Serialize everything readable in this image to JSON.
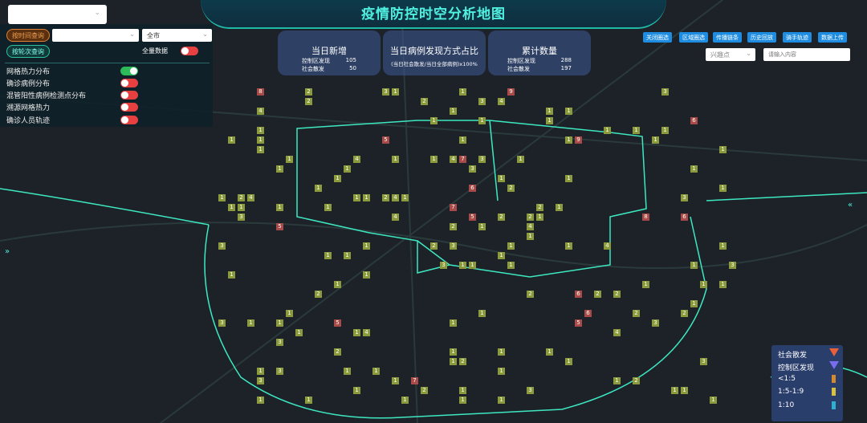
{
  "header": {
    "title": "疫情防控时空分析地图"
  },
  "left_panel": {
    "by_time_label": "按时间查询",
    "city_select": "全市",
    "by_round_label": "按轮次查询",
    "full_data_label": "全量数据",
    "full_data_on": false,
    "layers": [
      {
        "label": "网格热力分布",
        "on": true
      },
      {
        "label": "确诊病例分布",
        "on": false
      },
      {
        "label": "混管阳性病例检测点分布",
        "on": false
      },
      {
        "label": "溯源网格热力",
        "on": false
      },
      {
        "label": "确诊人员轨迹",
        "on": false
      }
    ]
  },
  "stats": {
    "today_new": {
      "title": "当日新增",
      "rows": [
        {
          "label": "控制区发现",
          "value": "105"
        },
        {
          "label": "社会散发",
          "value": "50"
        }
      ]
    },
    "ratio": {
      "title": "当日病例发现方式占比",
      "formula": "(当日社会散发/当日全部病例)x100%"
    },
    "cumulative": {
      "title": "累计数量",
      "rows": [
        {
          "label": "控制区发现",
          "value": "288"
        },
        {
          "label": "社会散发",
          "value": "197"
        }
      ]
    }
  },
  "toolbar": {
    "buttons": [
      "关闭圈选",
      "区域圈选",
      "传播链条",
      "历史回放",
      "骑手轨迹",
      "数据上传"
    ],
    "poi_select": "兴趣点",
    "search_placeholder": "请输入内容"
  },
  "legend": {
    "items": [
      "社会散发",
      "控制区发现",
      "<1:5",
      "1:5-1:9",
      "1:10"
    ],
    "colors": [
      "#e8603a",
      "#7a6cf0",
      "#d08a30",
      "#d8c040",
      "#30b0d0"
    ]
  },
  "map": {
    "cell_values": [
      1,
      1,
      3,
      1,
      2,
      4,
      1,
      3,
      1,
      1,
      2,
      1,
      5,
      1,
      3,
      1,
      1,
      4,
      2,
      1,
      1,
      3,
      1,
      7,
      1,
      2,
      1,
      1,
      3,
      6,
      1,
      1,
      2,
      4,
      1,
      1,
      1,
      3,
      9,
      2,
      1,
      5,
      1,
      1,
      4,
      1,
      2,
      1,
      3,
      1,
      1,
      6,
      1,
      2,
      8,
      1,
      1,
      3,
      1,
      4,
      1,
      1,
      2,
      1,
      1,
      5,
      3,
      1,
      1,
      2,
      1,
      4,
      1,
      1,
      7,
      1,
      2,
      3,
      1,
      1,
      1,
      6,
      1,
      2,
      1,
      1,
      3,
      1,
      4,
      1,
      2,
      1,
      1,
      9,
      1,
      3,
      1,
      1,
      2,
      5,
      1,
      1,
      4,
      1,
      1,
      3,
      2,
      1,
      1,
      1,
      6,
      1,
      2,
      1,
      3,
      1,
      1,
      4,
      1,
      1,
      2,
      8,
      1,
      1,
      3,
      1,
      5,
      1,
      2,
      1,
      1,
      4,
      1,
      1,
      3,
      1,
      2,
      1,
      7,
      1,
      1,
      3,
      1,
      2,
      1,
      1,
      4,
      1,
      6,
      1,
      1,
      2,
      1,
      3,
      1,
      1
    ],
    "accent": "#4ff0e0"
  }
}
